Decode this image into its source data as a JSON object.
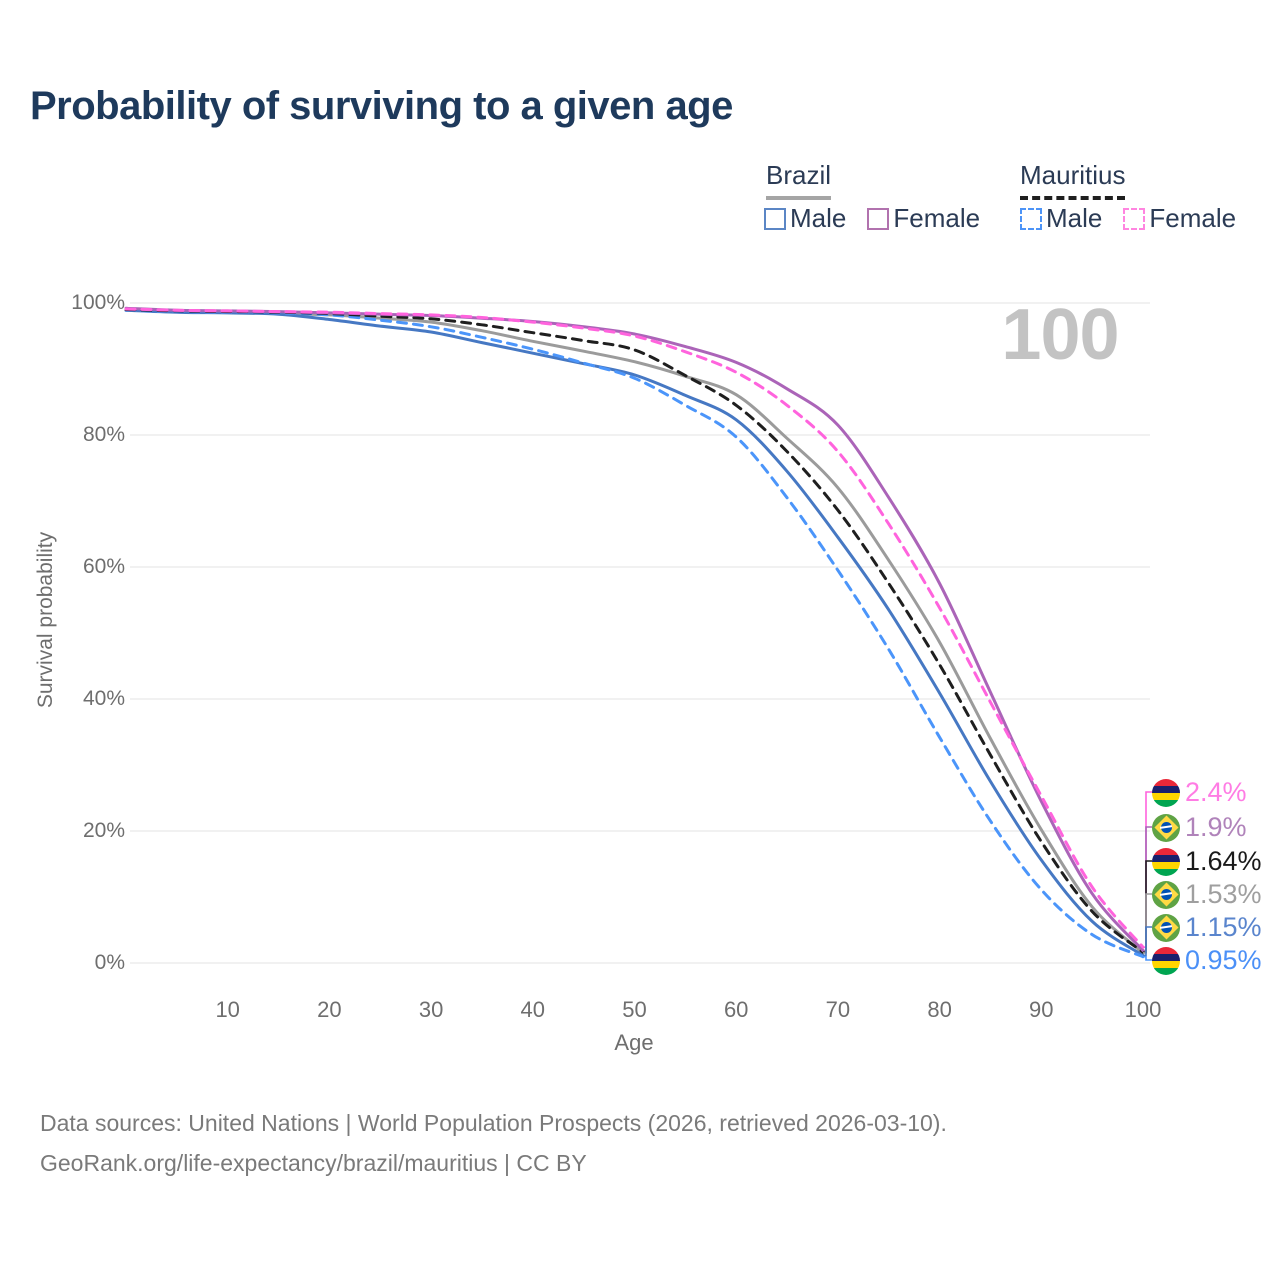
{
  "title": "Probability of surviving to a given age",
  "watermark": "100",
  "legend": {
    "brazil": {
      "label": "Brazil",
      "male": "Male",
      "female": "Female"
    },
    "mauritius": {
      "label": "Mauritius",
      "male": "Male",
      "female": "Female"
    }
  },
  "y_axis": {
    "title": "Survival probability",
    "ticks": [
      "100%",
      "80%",
      "60%",
      "40%",
      "20%",
      "0%"
    ]
  },
  "x_axis": {
    "title": "Age",
    "ticks": [
      "10",
      "20",
      "30",
      "40",
      "50",
      "60",
      "70",
      "80",
      "90",
      "100"
    ]
  },
  "end_labels": [
    {
      "value": "2.4%",
      "flag": "mauritius",
      "series": "mauritius-female",
      "color": "#ff7ce4"
    },
    {
      "value": "1.9%",
      "flag": "brazil",
      "series": "brazil-female",
      "color": "#b083ba"
    },
    {
      "value": "1.64%",
      "flag": "mauritius",
      "series": "mauritius-total",
      "color": "#1a1a1a"
    },
    {
      "value": "1.53%",
      "flag": "brazil",
      "series": "brazil-total",
      "color": "#9f9f9f"
    },
    {
      "value": "1.15%",
      "flag": "brazil",
      "series": "brazil-male",
      "color": "#5a85cd"
    },
    {
      "value": "0.95%",
      "flag": "mauritius",
      "series": "mauritius-male",
      "color": "#4b90f7"
    }
  ],
  "footer": {
    "line1": "Data sources: United Nations | World Population Prospects (2026, retrieved 2026-03-10).",
    "line2": "GeoRank.org/life-expectancy/brazil/mauritius | CC BY"
  },
  "chart_data": {
    "type": "line",
    "title": "Probability of surviving to a given age",
    "xlabel": "Age",
    "ylabel": "Survival probability",
    "xlim": [
      0,
      100
    ],
    "ylim": [
      0,
      100
    ],
    "grid": "horizontal",
    "legend_position": "top-right",
    "x": [
      0,
      5,
      10,
      15,
      20,
      25,
      30,
      35,
      40,
      45,
      50,
      55,
      60,
      65,
      70,
      75,
      80,
      85,
      90,
      95,
      100
    ],
    "series": [
      {
        "key": "brazil-total",
        "name": "Brazil Total",
        "style": "solid",
        "color": "#9b9b9b",
        "values": [
          99.0,
          98.7,
          98.6,
          98.4,
          98.2,
          97.7,
          97.1,
          95.8,
          94.2,
          92.7,
          91.1,
          88.9,
          86.1,
          79.5,
          72.0,
          61.0,
          48.6,
          34.0,
          20.2,
          8.5,
          1.53
        ]
      },
      {
        "key": "brazil-male",
        "name": "Brazil Male",
        "style": "solid",
        "color": "#4678c3",
        "values": [
          98.9,
          98.6,
          98.5,
          98.3,
          97.5,
          96.5,
          95.6,
          94.0,
          92.4,
          90.8,
          89.1,
          86.0,
          82.3,
          74.5,
          64.5,
          53.5,
          40.9,
          27.5,
          15.6,
          6.3,
          1.15
        ]
      },
      {
        "key": "mauritius-male",
        "name": "Mauritius Male",
        "style": "dashed",
        "color": "#4b95fa",
        "values": [
          98.9,
          98.7,
          98.6,
          98.5,
          98.2,
          97.4,
          96.4,
          94.8,
          93.0,
          90.9,
          88.6,
          84.5,
          79.7,
          70.5,
          59.5,
          47.5,
          34.2,
          21.5,
          11.1,
          4.3,
          0.95
        ]
      },
      {
        "key": "mauritius-total",
        "name": "Mauritius Total",
        "style": "dashed",
        "color": "#1f1f1f",
        "values": [
          99.0,
          98.8,
          98.7,
          98.6,
          98.4,
          98.0,
          97.6,
          96.7,
          95.5,
          94.3,
          92.9,
          89.0,
          84.5,
          77.5,
          68.6,
          57.5,
          45.2,
          31.5,
          18.4,
          7.8,
          1.64
        ]
      },
      {
        "key": "brazil-female",
        "name": "Brazil Female",
        "style": "solid",
        "color": "#ab64b8",
        "values": [
          99.2,
          98.9,
          98.8,
          98.7,
          98.5,
          98.3,
          98.1,
          97.7,
          97.2,
          96.4,
          95.3,
          93.4,
          91.0,
          87.0,
          81.5,
          70.5,
          57.5,
          41.0,
          24.5,
          10.5,
          1.9
        ]
      },
      {
        "key": "mauritius-female",
        "name": "Mauritius Female",
        "style": "dashed",
        "color": "#ff63dd",
        "values": [
          99.1,
          98.9,
          98.8,
          98.7,
          98.6,
          98.4,
          98.2,
          97.8,
          97.1,
          96.2,
          95.0,
          92.6,
          89.5,
          84.5,
          77.5,
          66.5,
          53.8,
          39.5,
          25.3,
          11.5,
          2.4
        ]
      }
    ]
  }
}
